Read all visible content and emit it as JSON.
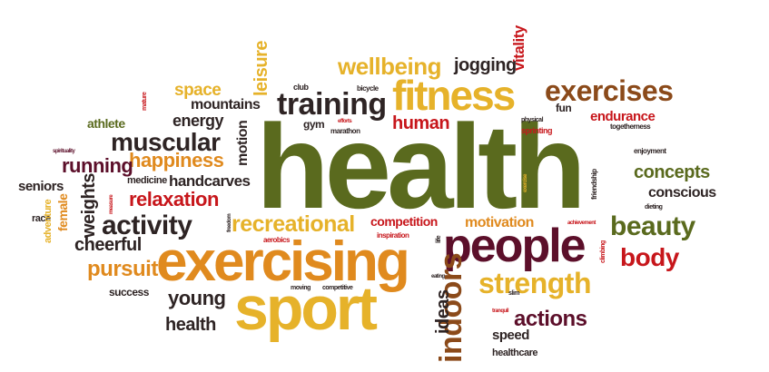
{
  "words": {
    "health": "health",
    "exercising": "exercising",
    "sport": "sport",
    "fitness": "fitness",
    "people": "people",
    "training": "training",
    "exercises": "exercises",
    "muscular": "muscular",
    "activity": "activity",
    "beauty": "beauty",
    "strength": "strength",
    "wellbeing": "wellbeing",
    "recreational": "recreational",
    "happiness": "happiness",
    "relaxation": "relaxation",
    "running": "running",
    "pursuit": "pursuit",
    "body": "body",
    "concepts": "concepts",
    "actions": "actions",
    "young": "young",
    "health2": "health",
    "indoors": "indoors",
    "ideas": "ideas",
    "human": "human",
    "jogging": "jogging",
    "space": "space",
    "mountains": "mountains",
    "energy": "energy",
    "leisure": "leisure",
    "motion": "motion",
    "cheerful": "cheerful",
    "weights": "weights",
    "handcarves": "handcarves",
    "medicine": "medicine",
    "athlete": "athlete",
    "seniors": "seniors",
    "race": "race",
    "female": "female",
    "adventure": "adventure",
    "success": "success",
    "competition": "competition",
    "motivation": "motivation",
    "endurance": "endurance",
    "conscious": "conscious",
    "speed": "speed",
    "healthcare": "healthcare",
    "vitality": "vitality",
    "fun": "fun",
    "gym": "gym",
    "club": "club",
    "bicycle": "bicycle",
    "marathon": "marathon",
    "sprinting": "sprinting",
    "physical": "physical",
    "efforts": "efforts",
    "mature": "mature",
    "spirituality": "spirituality",
    "togetherness": "togetherness",
    "enjoyment": "enjoyment",
    "dieting": "dieting",
    "inspiration": "inspiration",
    "aerobics": "aerobics",
    "freedom": "freedom",
    "moving": "moving",
    "competitive": "competitive",
    "eating": "eating",
    "slim": "slim",
    "tranquil": "tranquil",
    "life": "life",
    "friendship": "friendship",
    "climbing": "climbing",
    "achievement": "achievement",
    "exercise": "exercise",
    "measure": "measure"
  },
  "colors": {
    "olive": "#5a6a1e",
    "orange": "#e08a1e",
    "yellow": "#e6b22a",
    "red": "#c7161b",
    "maroon": "#5c0f2a",
    "dark": "#2e2424",
    "brown": "#8b4a1a"
  }
}
